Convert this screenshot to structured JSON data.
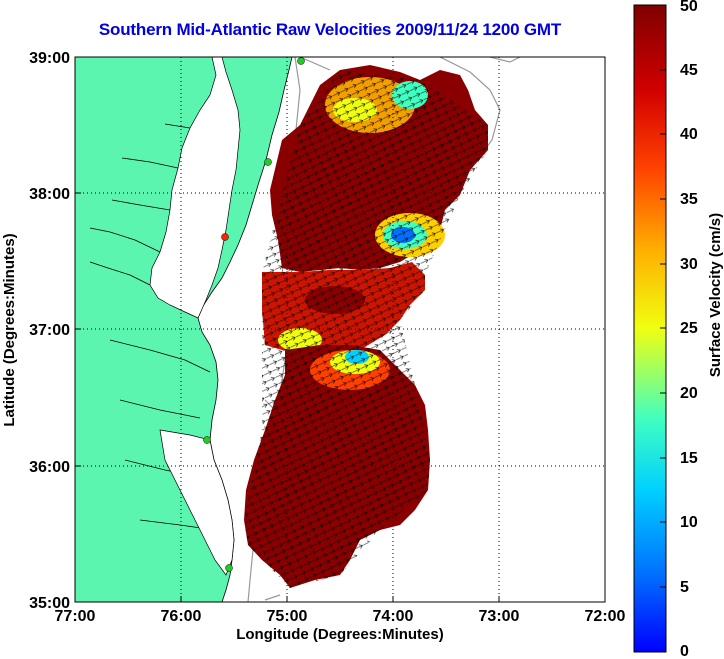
{
  "title": "Southern Mid-Atlantic Raw Velocities 2009/11/24 1200 GMT",
  "axes": {
    "xlabel": "Longitude (Degrees:Minutes)",
    "ylabel": "Latitude (Degrees:Minutes)",
    "x_ticks": [
      "77:00",
      "76:00",
      "75:00",
      "74:00",
      "73:00",
      "72:00"
    ],
    "y_ticks": [
      "39:00",
      "38:00",
      "37:00",
      "36:00",
      "35:00"
    ],
    "grid": "dotted"
  },
  "colorbar": {
    "label": "Surface Velocity (cm/s)",
    "ticks": [
      "0",
      "5",
      "10",
      "15",
      "20",
      "25",
      "30",
      "35",
      "40",
      "45",
      "50"
    ],
    "range": [
      0,
      50
    ],
    "colormap": "jet"
  },
  "colors": {
    "land": "#5cf5b0",
    "title": "#0000e0",
    "water": "#ffffff",
    "station_marker": "#22cc22",
    "station_marker_alt": "#ff2200"
  }
}
